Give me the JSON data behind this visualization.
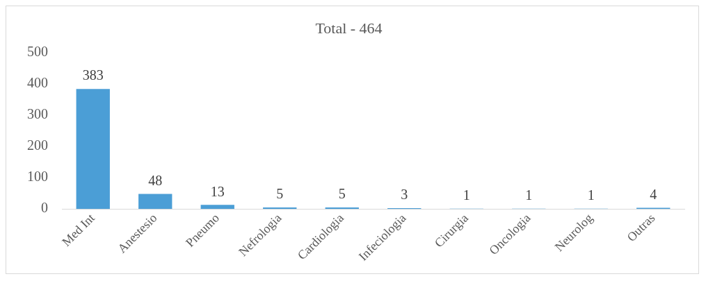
{
  "chart_data": {
    "type": "bar",
    "title": "Total - 464",
    "categories": [
      "Med Int",
      "Anestesio",
      "Pneumo",
      "Nefrologia",
      "Cardiologia",
      "Infeciologia",
      "Cirurgia",
      "Oncologia",
      "Neurolog",
      "Outras"
    ],
    "values": [
      383,
      48,
      13,
      5,
      5,
      3,
      1,
      1,
      1,
      4
    ],
    "color": "#4b9ed6",
    "ylim": [
      0,
      500
    ],
    "yticks": [
      0,
      100,
      200,
      300,
      400,
      500
    ],
    "data_labels": true,
    "grid": false,
    "legend": false
  }
}
